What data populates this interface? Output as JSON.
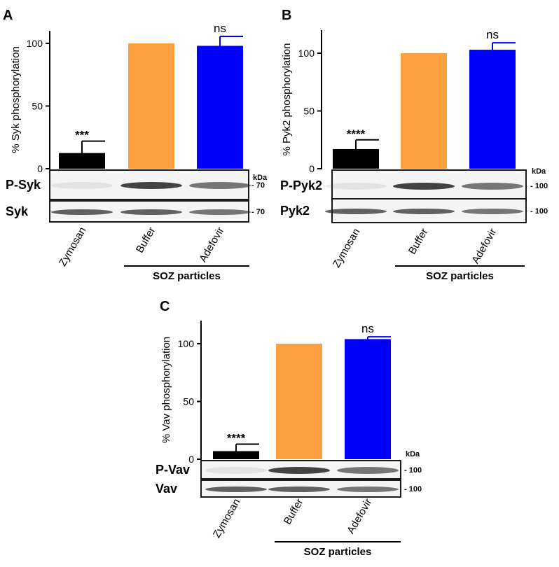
{
  "chart_data": [
    {
      "panel": "A",
      "type": "bar",
      "ylabel": "% Syk phosphorylation",
      "ylim": [
        0,
        110
      ],
      "yticks": [
        0,
        50,
        100
      ],
      "categories": [
        "Zymosan",
        "Buffer",
        "Adefovir"
      ],
      "values": [
        12.5,
        100,
        98
      ],
      "errors": [
        9.5,
        0,
        7.5
      ],
      "significance": [
        "***",
        "",
        "ns"
      ],
      "colors": [
        "#000000",
        "#ffa040",
        "#0000ff"
      ],
      "group_label": "SOZ particles",
      "blots": [
        {
          "label": "P-Syk",
          "marker": "70"
        },
        {
          "label": "Syk",
          "marker": "70"
        }
      ],
      "kda_label": "kDa"
    },
    {
      "panel": "B",
      "type": "bar",
      "ylabel": "% Pyk2 phosphorylation",
      "ylim": [
        0,
        120
      ],
      "yticks": [
        0,
        50,
        100
      ],
      "categories": [
        "Zymosan",
        "Buffer",
        "Adefovir"
      ],
      "values": [
        17,
        100,
        103
      ],
      "errors": [
        8,
        0,
        6
      ],
      "significance": [
        "****",
        "",
        "ns"
      ],
      "colors": [
        "#000000",
        "#ffa040",
        "#0000ff"
      ],
      "group_label": "SOZ particles",
      "blots": [
        {
          "label": "P-Pyk2",
          "marker": "100"
        },
        {
          "label": "Pyk2",
          "marker": "100"
        }
      ],
      "kda_label": "kDa"
    },
    {
      "panel": "C",
      "type": "bar",
      "ylabel": "% Vav phosphorylation",
      "ylim": [
        0,
        120
      ],
      "yticks": [
        0,
        50,
        100
      ],
      "categories": [
        "Zymosan",
        "Buffer",
        "Adefovir"
      ],
      "values": [
        7,
        100,
        104
      ],
      "errors": [
        6,
        0,
        2
      ],
      "significance": [
        "****",
        "",
        "ns"
      ],
      "colors": [
        "#000000",
        "#ffa040",
        "#0000ff"
      ],
      "group_label": "SOZ particles",
      "blots": [
        {
          "label": "P-Vav",
          "marker": "100"
        },
        {
          "label": "Vav",
          "marker": "100"
        }
      ],
      "kda_label": "kDa"
    }
  ]
}
